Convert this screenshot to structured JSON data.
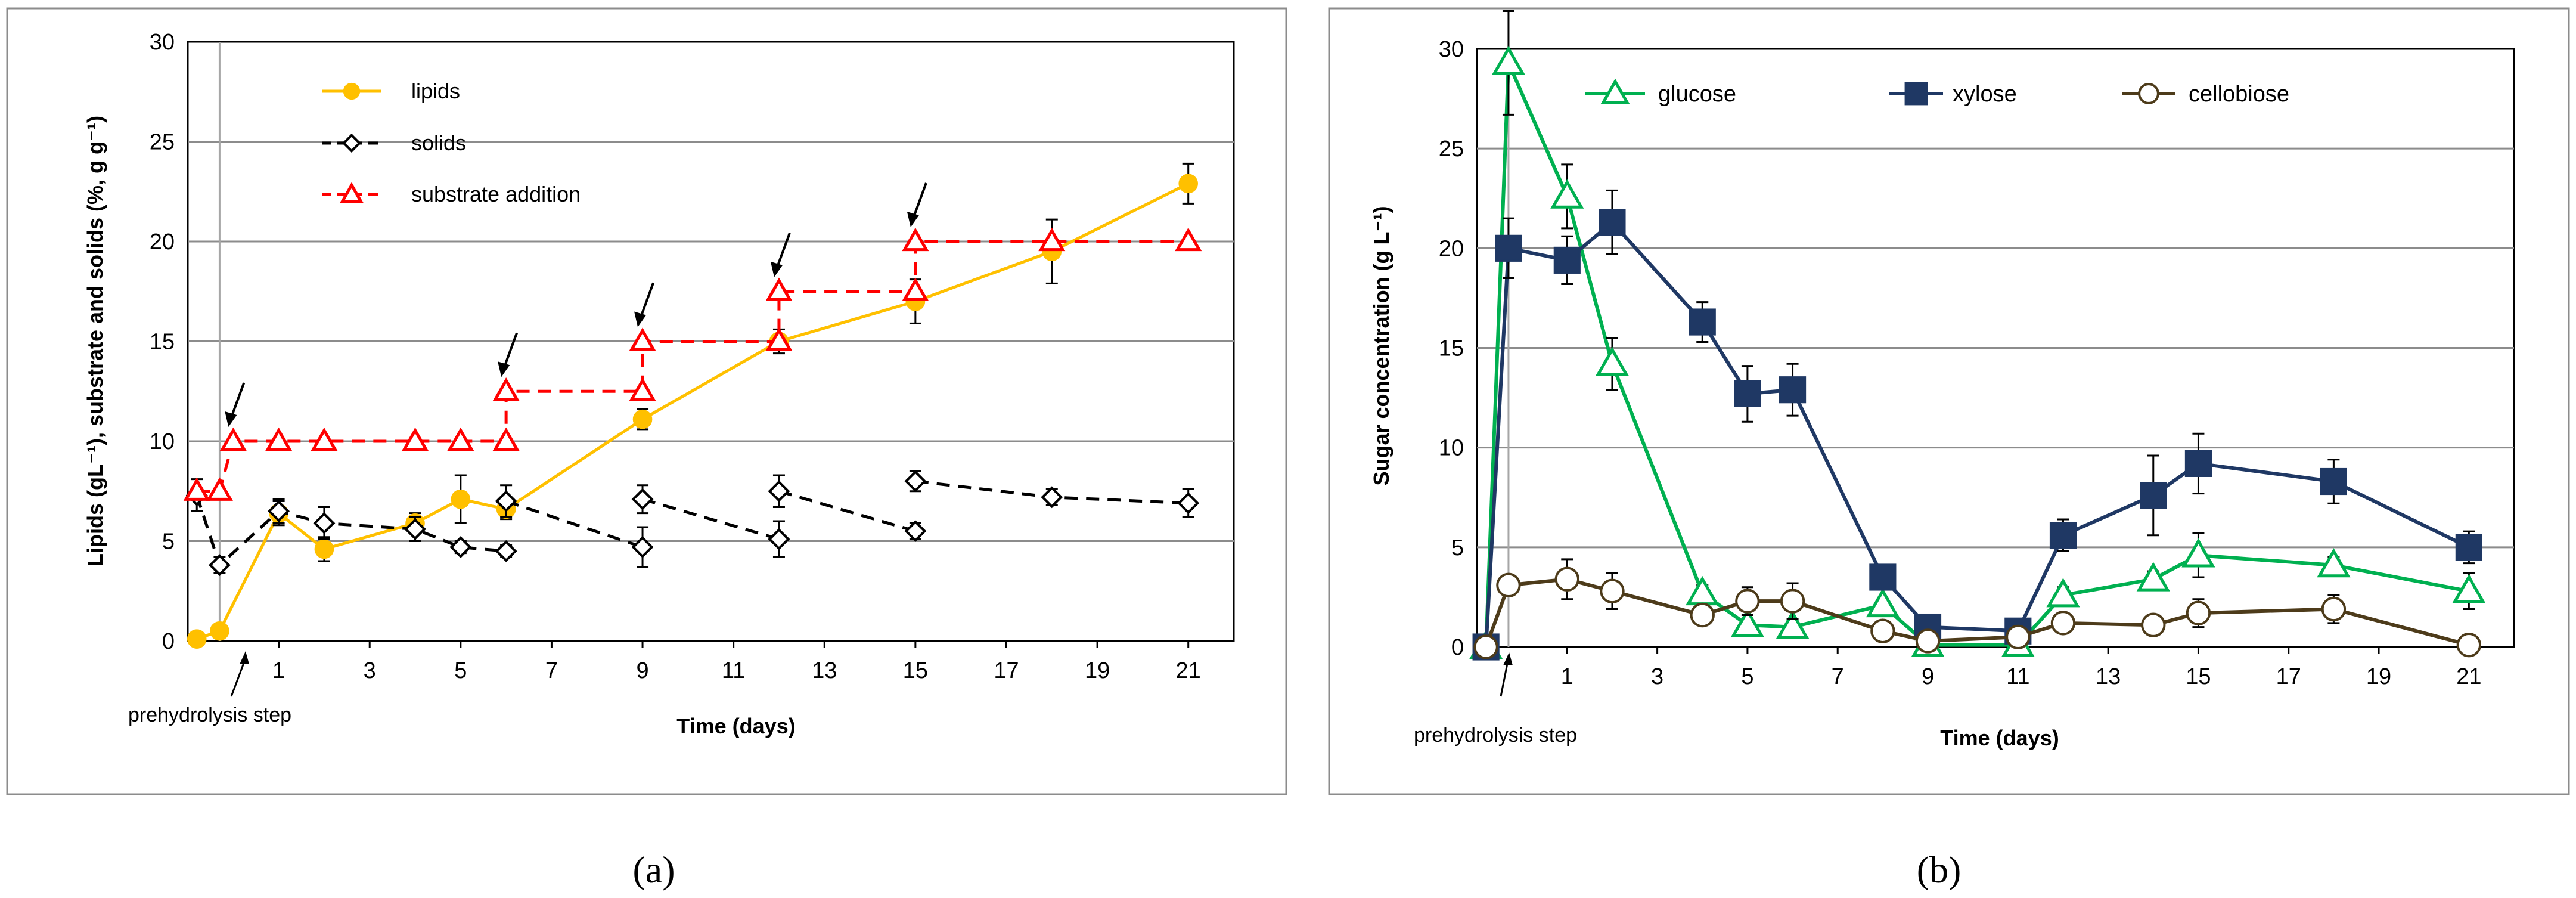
{
  "chart_data": [
    {
      "type": "line",
      "panel_label": "(a)",
      "xlabel": "Time (days)",
      "ylabel": "Lipids (gL⁻¹), substrate and solids (%, g g⁻¹)",
      "xlim": [
        -1,
        22
      ],
      "ylim": [
        0,
        30
      ],
      "xticks": [
        1,
        3,
        5,
        7,
        9,
        11,
        13,
        15,
        17,
        19,
        21
      ],
      "yticks": [
        0,
        5,
        10,
        15,
        20,
        25,
        30
      ],
      "legend_position": "top-left",
      "annotation": "prehydrolysis step",
      "prehydrolysis_day": -0.3,
      "series": [
        {
          "name": "lipids",
          "color": "#FFC000",
          "style": "solid",
          "marker": "circle",
          "points": [
            {
              "x": -0.8,
              "y": 0.1
            },
            {
              "x": -0.3,
              "y": 0.5
            },
            {
              "x": 1,
              "y": 6.4,
              "err": 0.6
            },
            {
              "x": 2,
              "y": 4.6,
              "err": 0.6
            },
            {
              "x": 4,
              "y": 5.9,
              "err": 0.5
            },
            {
              "x": 5,
              "y": 7.1,
              "err": 1.2
            },
            {
              "x": 6,
              "y": 6.6,
              "err": 0.5
            },
            {
              "x": 9,
              "y": 11.1,
              "err": 0.5
            },
            {
              "x": 12,
              "y": 15.0,
              "err": 0.6
            },
            {
              "x": 15,
              "y": 17.0,
              "err": 1.1
            },
            {
              "x": 18,
              "y": 19.5,
              "err": 1.6
            },
            {
              "x": 21,
              "y": 22.9,
              "err": 1.0
            }
          ]
        },
        {
          "name": "solids",
          "color": "#000000",
          "style": "dashed",
          "marker": "diamond",
          "segments": [
            [
              {
                "x": -0.8,
                "y": 7.3,
                "err": 0.8
              },
              {
                "x": -0.3,
                "y": 3.8,
                "err": 0.4
              },
              {
                "x": 1,
                "y": 6.5,
                "err": 0.6
              },
              {
                "x": 2,
                "y": 5.9,
                "err": 0.8
              },
              {
                "x": 4,
                "y": 5.6,
                "err": 0.6
              },
              {
                "x": 5,
                "y": 4.7,
                "err": 0.3
              },
              {
                "x": 6,
                "y": 4.5,
                "err": 0.3
              }
            ],
            [
              {
                "x": 6,
                "y": 7.0,
                "err": 0.8
              },
              {
                "x": 9,
                "y": 4.7,
                "err": 1.0
              }
            ],
            [
              {
                "x": 9,
                "y": 7.1,
                "err": 0.7
              },
              {
                "x": 12,
                "y": 5.1,
                "err": 0.9
              }
            ],
            [
              {
                "x": 12,
                "y": 7.5,
                "err": 0.8
              },
              {
                "x": 15,
                "y": 5.5,
                "err": 0.4
              }
            ],
            [
              {
                "x": 15,
                "y": 8.0,
                "err": 0.5
              },
              {
                "x": 18,
                "y": 7.2,
                "err": 0.4
              },
              {
                "x": 21,
                "y": 6.9,
                "err": 0.7
              }
            ]
          ]
        },
        {
          "name": "substrate addition",
          "color": "#FF0000",
          "style": "dashed",
          "marker": "triangle",
          "points": [
            {
              "x": -0.8,
              "y": 7.5
            },
            {
              "x": -0.3,
              "y": 7.5
            },
            {
              "x": 0,
              "y": 10
            },
            {
              "x": 1,
              "y": 10
            },
            {
              "x": 2,
              "y": 10
            },
            {
              "x": 4,
              "y": 10
            },
            {
              "x": 5,
              "y": 10
            },
            {
              "x": 6,
              "y": 10
            },
            {
              "x": 6,
              "y": 12.5
            },
            {
              "x": 9,
              "y": 12.5
            },
            {
              "x": 9,
              "y": 15
            },
            {
              "x": 12,
              "y": 15
            },
            {
              "x": 12,
              "y": 17.5
            },
            {
              "x": 15,
              "y": 17.5
            },
            {
              "x": 15,
              "y": 20
            },
            {
              "x": 18,
              "y": 20
            },
            {
              "x": 21,
              "y": 20
            }
          ],
          "addition_arrows": [
            {
              "x": 0,
              "y": 10
            },
            {
              "x": 6,
              "y": 12.5
            },
            {
              "x": 9,
              "y": 15
            },
            {
              "x": 12,
              "y": 17.5
            },
            {
              "x": 15,
              "y": 20
            }
          ]
        }
      ]
    },
    {
      "type": "line",
      "panel_label": "(b)",
      "xlabel": "Time (days)",
      "ylabel": "Sugar concentration (g L⁻¹)",
      "xlim": [
        -1,
        22
      ],
      "ylim": [
        0,
        30
      ],
      "xticks": [
        1,
        3,
        5,
        7,
        9,
        11,
        13,
        15,
        17,
        19,
        21
      ],
      "yticks": [
        0,
        5,
        10,
        15,
        20,
        25,
        30
      ],
      "legend_position": "top",
      "annotation": "prehydrolysis step",
      "prehydrolysis_day": -0.3,
      "series": [
        {
          "name": "glucose",
          "color": "#00B050",
          "style": "solid",
          "marker": "triangle",
          "points": [
            {
              "x": -0.8,
              "y": 0.0
            },
            {
              "x": -0.3,
              "y": 29.3,
              "err": 2.6
            },
            {
              "x": 1,
              "y": 22.6,
              "err": 1.6
            },
            {
              "x": 2,
              "y": 14.2,
              "err": 1.3
            },
            {
              "x": 4,
              "y": 2.7,
              "err": 0.4
            },
            {
              "x": 5,
              "y": 1.1,
              "err": 0.3
            },
            {
              "x": 6,
              "y": 1.0,
              "err": 0.3
            },
            {
              "x": 8,
              "y": 2.1,
              "err": 0.3
            },
            {
              "x": 9,
              "y": 0.1
            },
            {
              "x": 11,
              "y": 0.1
            },
            {
              "x": 12,
              "y": 2.6,
              "err": 0.4
            },
            {
              "x": 14,
              "y": 3.4,
              "err": 0.4
            },
            {
              "x": 15,
              "y": 4.6,
              "err": 1.1
            },
            {
              "x": 18,
              "y": 4.1,
              "err": 0.4
            },
            {
              "x": 21,
              "y": 2.8,
              "err": 0.9
            }
          ]
        },
        {
          "name": "xylose",
          "color": "#1F3864",
          "style": "solid",
          "marker": "square",
          "points": [
            {
              "x": -0.8,
              "y": 0.0
            },
            {
              "x": -0.3,
              "y": 20.0,
              "err": 1.5
            },
            {
              "x": 1,
              "y": 19.4,
              "err": 1.2
            },
            {
              "x": 2,
              "y": 21.3,
              "err": 1.6
            },
            {
              "x": 4,
              "y": 16.3,
              "err": 1.0
            },
            {
              "x": 5,
              "y": 12.7,
              "err": 1.4
            },
            {
              "x": 6,
              "y": 12.9,
              "err": 1.3
            },
            {
              "x": 8,
              "y": 3.5
            },
            {
              "x": 9,
              "y": 1.0
            },
            {
              "x": 11,
              "y": 0.8
            },
            {
              "x": 12,
              "y": 5.6,
              "err": 0.8
            },
            {
              "x": 14,
              "y": 7.6,
              "err": 2.0
            },
            {
              "x": 15,
              "y": 9.2,
              "err": 1.5
            },
            {
              "x": 18,
              "y": 8.3,
              "err": 1.1
            },
            {
              "x": 21,
              "y": 5.0,
              "err": 0.8
            }
          ]
        },
        {
          "name": "cellobiose",
          "color": "#4D3B1A",
          "style": "solid",
          "marker": "circle",
          "points": [
            {
              "x": -0.8,
              "y": 0.0
            },
            {
              "x": -0.3,
              "y": 3.1,
              "err": 0.5
            },
            {
              "x": 1,
              "y": 3.4,
              "err": 1.0
            },
            {
              "x": 2,
              "y": 2.8,
              "err": 0.9
            },
            {
              "x": 4,
              "y": 1.6
            },
            {
              "x": 5,
              "y": 2.3,
              "err": 0.7
            },
            {
              "x": 6,
              "y": 2.3,
              "err": 0.9
            },
            {
              "x": 8,
              "y": 0.8
            },
            {
              "x": 9,
              "y": 0.3
            },
            {
              "x": 11,
              "y": 0.5
            },
            {
              "x": 12,
              "y": 1.2
            },
            {
              "x": 14,
              "y": 1.1
            },
            {
              "x": 15,
              "y": 1.7,
              "err": 0.7
            },
            {
              "x": 18,
              "y": 1.9,
              "err": 0.7
            },
            {
              "x": 21,
              "y": 0.1
            }
          ]
        }
      ]
    }
  ]
}
